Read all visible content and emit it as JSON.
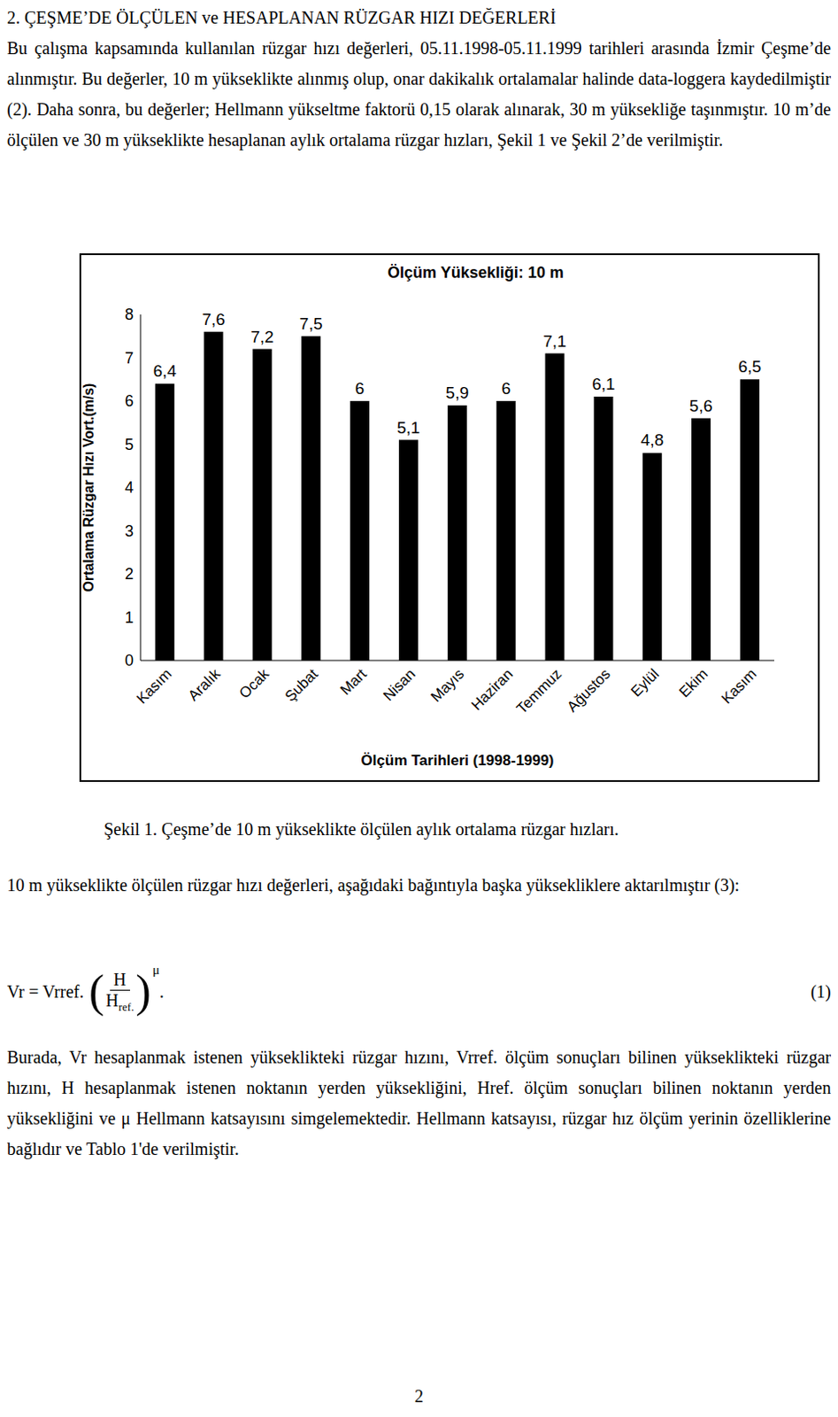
{
  "heading": "2. ÇEŞME’DE ÖLÇÜLEN ve HESAPLANAN RÜZGAR HIZI DEĞERLERİ",
  "paragraph_1": "Bu çalışma kapsamında kullanılan rüzgar hızı değerleri, 05.11.1998-05.11.1999 tarihleri arasında İzmir Çeşme’de alınmıştır. Bu değerler, 10 m yükseklikte alınmış olup, onar dakikalık ortalamalar halinde data-loggera kaydedilmiştir (2). Daha sonra, bu değerler; Hellmann yükseltme faktorü 0,15 olarak alınarak, 30 m yüksekliğe taşınmıştır. 10 m’de ölçülen ve 30 m yükseklikte hesaplanan aylık ortalama rüzgar hızları, Şekil 1 ve Şekil 2’de verilmiştir.",
  "chart_data": {
    "type": "bar",
    "title": "Ölçüm Yüksekliği: 10 m",
    "x_label": "Ölçüm Tarihleri (1998-1999)",
    "y_label": "Ortalama Rüzgar Hızı Vort.(m/s)",
    "categories": [
      "Kasım",
      "Aralık",
      "Ocak",
      "Şubat",
      "Mart",
      "Nisan",
      "Mayıs",
      "Haziran",
      "Temmuz",
      "Ağustos",
      "Eylül",
      "Ekim",
      "Kasım"
    ],
    "values": [
      6.4,
      7.6,
      7.2,
      7.5,
      6,
      5.1,
      5.9,
      6,
      7.1,
      6.1,
      4.8,
      5.6,
      6.5
    ],
    "value_labels": [
      "6,4",
      "7,6",
      "7,2",
      "7,5",
      "6",
      "5,1",
      "5,9",
      "6",
      "7,1",
      "6,1",
      "4,8",
      "5,6",
      "6,5"
    ],
    "data_labels": true,
    "color": "#000000",
    "ylim": [
      0,
      8
    ],
    "yticks": [
      0,
      1,
      2,
      3,
      4,
      5,
      6,
      7,
      8
    ],
    "grid": false
  },
  "caption": "Şekil 1. Çeşme’de 10 m yükseklikte ölçülen aylık ortalama rüzgar hızları.",
  "paragraph_2": "10 m yükseklikte ölçülen rüzgar hızı değerleri, aşağıdaki bağıntıyla başka yüksekliklere aktarılmıştır (3):",
  "formula": {
    "lhs": "Vr = Vrref.",
    "numerator": "H",
    "denominator": "H",
    "denominator_subscript": "ref.",
    "exponent": "μ",
    "end": ".",
    "number": "(1)"
  },
  "paragraph_3": "Burada, Vr hesaplanmak istenen yükseklikteki rüzgar hızını, Vrref. ölçüm sonuçları bilinen yükseklikteki rüzgar hızını, H hesaplanmak istenen noktanın yerden yüksekliğini, Href. ölçüm sonuçları bilinen noktanın yerden yüksekliğini ve μ Hellmann katsayısını simgelemektedir. Hellmann katsayısı, rüzgar hız ölçüm yerinin özelliklerine bağlıdır ve Tablo 1'de verilmiştir.",
  "page_number": "2"
}
